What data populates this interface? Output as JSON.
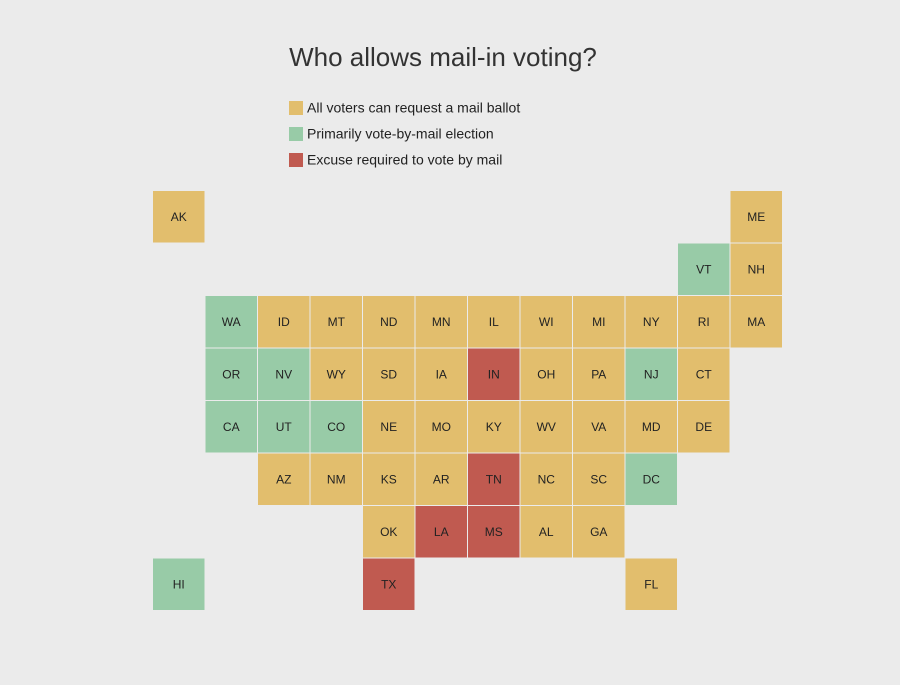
{
  "title": "Who allows mail-in voting?",
  "legend": [
    {
      "label": "All voters can request a mail ballot",
      "color": "#e2be6d",
      "states": [
        "AK",
        "ME",
        "NH",
        "ID",
        "MT",
        "ND",
        "MN",
        "IL",
        "WI",
        "MI",
        "NY",
        "RI",
        "MA",
        "WY",
        "SD",
        "IA",
        "OH",
        "PA",
        "CT",
        "NE",
        "MO",
        "KY",
        "WV",
        "VA",
        "MD",
        "DE",
        "AZ",
        "NM",
        "KS",
        "AR",
        "NC",
        "SC",
        "OK",
        "AL",
        "GA",
        "FL"
      ]
    },
    {
      "label": "Primarily vote-by-mail election",
      "color": "#98cba7",
      "states": [
        "VT",
        "WA",
        "OR",
        "NV",
        "NJ",
        "CA",
        "UT",
        "CO",
        "DC",
        "HI"
      ]
    },
    {
      "label": "Excuse required to vote by mail",
      "color": "#c05a50",
      "states": [
        "IN",
        "TN",
        "LA",
        "MS",
        "TX"
      ]
    }
  ],
  "rows": [
    [
      "AK",
      null,
      null,
      null,
      null,
      null,
      null,
      null,
      null,
      null,
      null,
      "ME"
    ],
    [
      null,
      null,
      null,
      null,
      null,
      null,
      null,
      null,
      null,
      null,
      "VT",
      "NH"
    ],
    [
      null,
      "WA",
      "ID",
      "MT",
      "ND",
      "MN",
      "IL",
      "WI",
      "MI",
      "NY",
      "RI",
      "MA"
    ],
    [
      null,
      "OR",
      "NV",
      "WY",
      "SD",
      "IA",
      "IN",
      "OH",
      "PA",
      "NJ",
      "CT",
      null
    ],
    [
      null,
      "CA",
      "UT",
      "CO",
      "NE",
      "MO",
      "KY",
      "WV",
      "VA",
      "MD",
      "DE",
      null
    ],
    [
      null,
      null,
      "AZ",
      "NM",
      "KS",
      "AR",
      "TN",
      "NC",
      "SC",
      "DC",
      null,
      null
    ],
    [
      null,
      null,
      null,
      null,
      "OK",
      "LA",
      "MS",
      "AL",
      "GA",
      null,
      null,
      null
    ],
    [
      "HI",
      null,
      null,
      null,
      "TX",
      null,
      null,
      null,
      null,
      "FL",
      null,
      null
    ]
  ]
}
